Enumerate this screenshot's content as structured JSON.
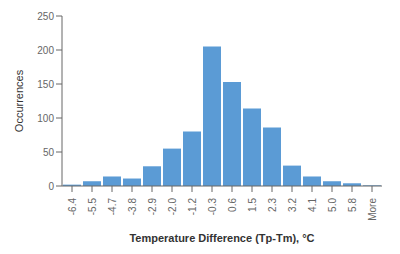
{
  "chart_data": {
    "type": "bar",
    "categories": [
      "-6.4",
      "-5.5",
      "-4.7",
      "-3.8",
      "-2.9",
      "-2.0",
      "-1.2",
      "-0.3",
      "0.6",
      "1.5",
      "2.3",
      "3.2",
      "4.1",
      "5.0",
      "5.8",
      "More"
    ],
    "values": [
      2,
      7,
      14,
      11,
      29,
      55,
      80,
      205,
      153,
      114,
      86,
      30,
      14,
      7,
      4,
      1
    ],
    "color": "#5b9bd5",
    "xlabel": "Temperature Difference (Tp-Tm), °C",
    "ylabel": "Occurrences",
    "ylim": [
      0,
      250
    ],
    "yticks": [
      0,
      50,
      100,
      150,
      200,
      250
    ],
    "grid": false
  }
}
